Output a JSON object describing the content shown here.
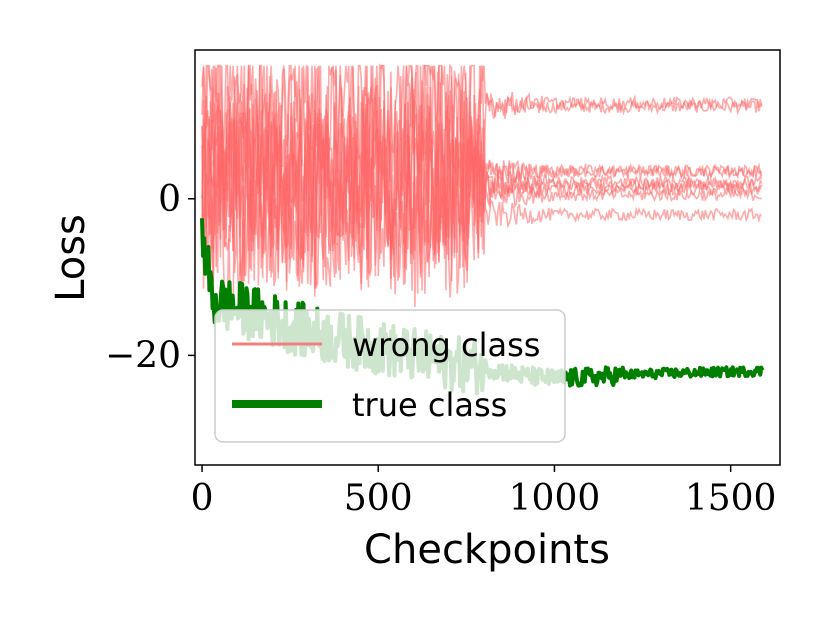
{
  "chart_data": {
    "type": "line",
    "xlabel": "Checkpoints",
    "ylabel": "Loss",
    "xlim": [
      -20,
      1640
    ],
    "ylim": [
      -34,
      19
    ],
    "x_ticks": [
      0,
      500,
      1000,
      1500
    ],
    "x_tick_labels": [
      "0",
      "500",
      "1000",
      "1500"
    ],
    "y_ticks": [
      0,
      -20
    ],
    "y_tick_labels": [
      "0",
      "−20"
    ],
    "legend_position": "lower-left",
    "series_summary": {
      "wrong_class": {
        "sample_x": [
          0,
          200,
          400,
          600,
          800,
          1000,
          1200,
          1400,
          1590
        ],
        "level_centers": [
          11.5,
          3.0,
          2.0,
          1.0,
          0.0,
          -2.0
        ],
        "noisy_until_x": 800,
        "noisy_range": [
          -14,
          17
        ],
        "line_count": 9
      },
      "true_class": {
        "x": [
          0,
          10,
          20,
          30,
          100,
          200,
          300,
          400,
          500,
          600,
          700,
          800,
          900,
          1000,
          1100,
          1200,
          1300,
          1400,
          1500,
          1590
        ],
        "y": [
          -5,
          -7,
          -10,
          -13,
          -14,
          -15.5,
          -17,
          -18,
          -19,
          -20,
          -21,
          -21.5,
          -22.5,
          -23,
          -22.8,
          -22.5,
          -22.3,
          -22.2,
          -22.1,
          -22.0
        ]
      }
    },
    "series": [
      {
        "name": "wrong class",
        "color": "#ff6666",
        "opacity": 0.55
      },
      {
        "name": "true class",
        "color": "#007f00"
      }
    ],
    "legend": [
      {
        "label": "wrong class",
        "color": "#f08080",
        "style": "thin"
      },
      {
        "label": "true class",
        "color": "#007f00",
        "style": "thick"
      }
    ]
  }
}
